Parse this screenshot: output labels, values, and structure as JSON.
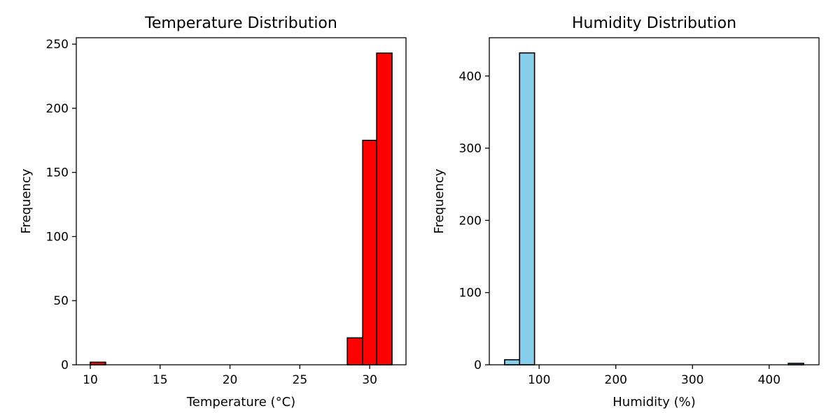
{
  "chart_data": [
    {
      "type": "bar",
      "title": "Temperature Distribution",
      "xlabel": "Temperature (°C)",
      "ylabel": "Frequency",
      "xlim": [
        9,
        32.6
      ],
      "ylim": [
        0,
        255
      ],
      "xticks": [
        10,
        15,
        20,
        25,
        30
      ],
      "yticks": [
        0,
        50,
        100,
        150,
        200,
        250
      ],
      "bar_color": "#ff0000",
      "edge_color": "#000000",
      "grid": false,
      "bins": [
        {
          "x0": 10.0,
          "x1": 11.1,
          "count": 2
        },
        {
          "x0": 28.4,
          "x1": 29.5,
          "count": 21
        },
        {
          "x0": 29.5,
          "x1": 30.5,
          "count": 175
        },
        {
          "x0": 30.5,
          "x1": 31.6,
          "count": 243
        }
      ]
    },
    {
      "type": "bar",
      "title": "Humidity Distribution",
      "xlabel": "Humidity (%)",
      "ylabel": "Frequency",
      "xlim": [
        35,
        465
      ],
      "ylim": [
        0,
        453
      ],
      "xticks": [
        100,
        200,
        300,
        400
      ],
      "yticks": [
        0,
        100,
        200,
        300,
        400
      ],
      "bar_color": "#87ceeb",
      "edge_color": "#000000",
      "grid": false,
      "bins": [
        {
          "x0": 55.0,
          "x1": 74.5,
          "count": 7
        },
        {
          "x0": 74.5,
          "x1": 94.0,
          "count": 432
        },
        {
          "x0": 425.0,
          "x1": 445.0,
          "count": 2
        }
      ]
    }
  ]
}
